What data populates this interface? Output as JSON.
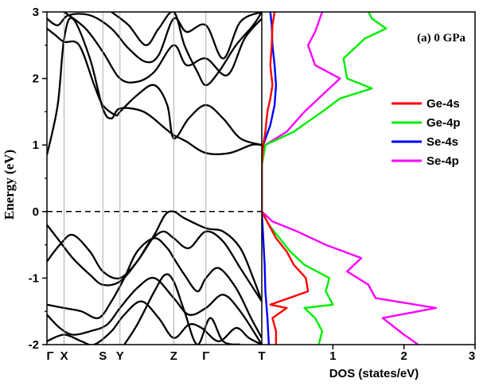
{
  "chart_data": [
    {
      "type": "line",
      "panel": "band-structure",
      "ylabel": "Energy (eV)",
      "ylim": [
        -2,
        3
      ],
      "yticks": [
        "-2",
        "-1",
        "0",
        "1",
        "2",
        "3"
      ],
      "kpoints": [
        {
          "label": "Γ",
          "pos": 0.0
        },
        {
          "label": "X",
          "pos": 0.08
        },
        {
          "label": "S",
          "pos": 0.26
        },
        {
          "label": "Y",
          "pos": 0.34
        },
        {
          "label": "Z",
          "pos": 0.59
        },
        {
          "label": "Γ",
          "pos": 0.74
        },
        {
          "label": "T",
          "pos": 1.0
        }
      ],
      "fermi_level": 0,
      "band_color": "#000000",
      "bands": [
        {
          "x": [
            0,
            0.05,
            0.08,
            0.12,
            0.2,
            0.26,
            0.3,
            0.34,
            0.45,
            0.55,
            0.59,
            0.65,
            0.74,
            0.85,
            0.95,
            1.0
          ],
          "y": [
            0.85,
            1.6,
            2.6,
            2.9,
            2.3,
            1.55,
            1.4,
            1.55,
            1.5,
            1.25,
            1.15,
            1.05,
            0.88,
            0.88,
            1.0,
            1.0
          ]
        },
        {
          "x": [
            0,
            0.04,
            0.08,
            0.15,
            0.22,
            0.26,
            0.32,
            0.34,
            0.42,
            0.5,
            0.56,
            0.59,
            0.66,
            0.74,
            0.82,
            0.9,
            1.0
          ],
          "y": [
            2.75,
            2.65,
            2.55,
            2.5,
            1.9,
            1.6,
            1.45,
            1.5,
            1.75,
            1.9,
            1.6,
            1.1,
            1.4,
            1.6,
            1.4,
            1.1,
            1.0
          ]
        },
        {
          "x": [
            0,
            0.05,
            0.1,
            0.2,
            0.3,
            0.38,
            0.46,
            0.52,
            0.59,
            0.65,
            0.74,
            0.82,
            0.9,
            1.0
          ],
          "y": [
            2.9,
            2.8,
            2.95,
            2.95,
            2.75,
            2.45,
            2.25,
            2.35,
            2.9,
            2.7,
            2.8,
            2.3,
            2.85,
            3.0
          ]
        },
        {
          "x": [
            0.08,
            0.18,
            0.26,
            0.34,
            0.42,
            0.5,
            0.59,
            0.65,
            0.74,
            0.84,
            0.92,
            1.0
          ],
          "y": [
            3.0,
            2.75,
            2.4,
            2.0,
            1.95,
            2.1,
            2.5,
            2.2,
            2.3,
            2.05,
            2.6,
            2.9
          ]
        },
        {
          "x": [
            0.3,
            0.38,
            0.46,
            0.52,
            0.59,
            0.64,
            0.7,
            0.74,
            0.8,
            0.88,
            0.96,
            1.0
          ],
          "y": [
            3.0,
            2.8,
            2.5,
            2.75,
            3.0,
            2.5,
            2.1,
            1.9,
            2.1,
            2.5,
            2.8,
            3.0
          ]
        },
        {
          "x": [
            0,
            0.06,
            0.12,
            0.2,
            0.26,
            0.34,
            0.42,
            0.5,
            0.55,
            0.59,
            0.64,
            0.74,
            0.82,
            0.9,
            0.96,
            1.0
          ],
          "y": [
            -0.2,
            -0.45,
            -0.7,
            -0.95,
            -1.1,
            -1.05,
            -0.75,
            -0.35,
            -0.05,
            0.0,
            -0.1,
            -0.25,
            -0.3,
            -0.55,
            -1.0,
            -1.35
          ]
        },
        {
          "x": [
            0,
            0.06,
            0.12,
            0.2,
            0.26,
            0.34,
            0.42,
            0.48,
            0.54,
            0.59,
            0.66,
            0.74,
            0.82,
            0.9,
            1.0
          ],
          "y": [
            -0.75,
            -0.5,
            -0.35,
            -0.6,
            -0.9,
            -1.0,
            -0.75,
            -0.45,
            -0.3,
            -0.4,
            -0.55,
            -0.3,
            -0.45,
            -0.85,
            -1.35
          ]
        },
        {
          "x": [
            0,
            0.08,
            0.16,
            0.24,
            0.3,
            0.36,
            0.42,
            0.5,
            0.56,
            0.59,
            0.64,
            0.7,
            0.74,
            0.8,
            0.88,
            0.95,
            1.0
          ],
          "y": [
            -1.4,
            -1.45,
            -1.5,
            -1.6,
            -1.35,
            -1.0,
            -0.6,
            -0.4,
            -0.55,
            -0.7,
            -0.95,
            -1.2,
            -1.0,
            -0.85,
            -1.15,
            -1.6,
            -1.9
          ]
        },
        {
          "x": [
            0,
            0.06,
            0.12,
            0.2,
            0.28,
            0.34,
            0.42,
            0.5,
            0.59,
            0.66,
            0.74,
            0.82,
            0.9,
            1.0
          ],
          "y": [
            -1.55,
            -1.75,
            -1.85,
            -1.8,
            -1.7,
            -1.45,
            -1.15,
            -1.0,
            -1.3,
            -1.55,
            -1.45,
            -1.25,
            -1.5,
            -2.0
          ]
        },
        {
          "x": [
            0,
            0.08,
            0.16,
            0.22,
            0.3,
            0.36,
            0.44,
            0.52,
            0.59,
            0.66,
            0.72,
            0.8,
            0.88,
            0.94,
            1.0
          ],
          "y": [
            -1.95,
            -1.85,
            -1.95,
            -2.0,
            -1.8,
            -1.55,
            -1.35,
            -1.6,
            -1.9,
            -1.7,
            -1.75,
            -1.95,
            -1.75,
            -1.9,
            -2.0
          ]
        },
        {
          "x": [
            0.36,
            0.42,
            0.5,
            0.55,
            0.59,
            0.64,
            0.7,
            0.76,
            0.82,
            0.9
          ],
          "y": [
            -2.0,
            -1.7,
            -1.2,
            -0.95,
            -1.05,
            -1.5,
            -2.0,
            -1.6,
            -1.95,
            -2.0
          ]
        }
      ]
    },
    {
      "type": "line",
      "panel": "dos",
      "title": "(a) 0 GPa",
      "xlabel": "DOS (states/eV)",
      "xlim": [
        0,
        3
      ],
      "ylim": [
        -2,
        3
      ],
      "xticks": [
        "1",
        "2",
        "3"
      ],
      "legend": "right",
      "series": [
        {
          "name": "Ge-4s",
          "color": "#ff0000",
          "e": [
            -2.0,
            -1.8,
            -1.6,
            -1.45,
            -1.4,
            -1.2,
            -1.0,
            -0.8,
            -0.6,
            -0.4,
            -0.2,
            0.0,
            0.3,
            0.7,
            1.0,
            1.2,
            1.5,
            1.7,
            1.9,
            2.2,
            2.5,
            2.8,
            3.0
          ],
          "v": [
            0.2,
            0.2,
            0.15,
            0.35,
            0.12,
            0.65,
            0.62,
            0.45,
            0.35,
            0.2,
            0.1,
            0.0,
            0.0,
            0.0,
            0.02,
            0.05,
            0.08,
            0.12,
            0.15,
            0.12,
            0.14,
            0.15,
            0.18
          ]
        },
        {
          "name": "Ge-4p",
          "color": "#00ee00",
          "e": [
            -2.0,
            -1.8,
            -1.6,
            -1.45,
            -1.4,
            -1.2,
            -1.0,
            -0.8,
            -0.6,
            -0.4,
            -0.2,
            0.0,
            0.3,
            0.7,
            1.0,
            1.2,
            1.5,
            1.7,
            1.85,
            2.0,
            2.3,
            2.6,
            2.75,
            2.9,
            3.0
          ],
          "v": [
            0.8,
            0.85,
            0.75,
            0.6,
            1.0,
            0.9,
            0.95,
            0.6,
            0.4,
            0.25,
            0.1,
            0.0,
            0.0,
            0.0,
            0.05,
            0.45,
            0.85,
            1.1,
            1.55,
            1.2,
            1.15,
            1.45,
            1.75,
            1.55,
            1.5
          ]
        },
        {
          "name": "Se-4s",
          "color": "#0000ff",
          "e": [
            -2.0,
            -1.6,
            -1.2,
            -0.8,
            -0.4,
            -0.2,
            0.0,
            0.3,
            0.7,
            1.0,
            1.3,
            1.6,
            1.9,
            2.2,
            2.5,
            2.8,
            3.0
          ],
          "v": [
            0.1,
            0.08,
            0.05,
            0.04,
            0.02,
            0.01,
            0.0,
            0.0,
            0.0,
            0.02,
            0.12,
            0.18,
            0.2,
            0.18,
            0.15,
            0.14,
            0.12
          ]
        },
        {
          "name": "Se-4p",
          "color": "#ff00ff",
          "e": [
            -2.0,
            -1.85,
            -1.6,
            -1.45,
            -1.3,
            -1.1,
            -0.9,
            -0.7,
            -0.5,
            -0.3,
            -0.15,
            0.0,
            0.3,
            0.7,
            1.0,
            1.2,
            1.5,
            1.8,
            2.0,
            2.2,
            2.5,
            2.7,
            2.85,
            3.0
          ],
          "v": [
            2.2,
            2.0,
            1.7,
            2.45,
            1.6,
            1.5,
            1.2,
            1.4,
            0.9,
            0.5,
            0.15,
            0.0,
            0.0,
            0.0,
            0.05,
            0.35,
            0.6,
            0.9,
            1.1,
            0.75,
            0.65,
            0.75,
            0.8,
            0.85
          ]
        }
      ]
    }
  ]
}
